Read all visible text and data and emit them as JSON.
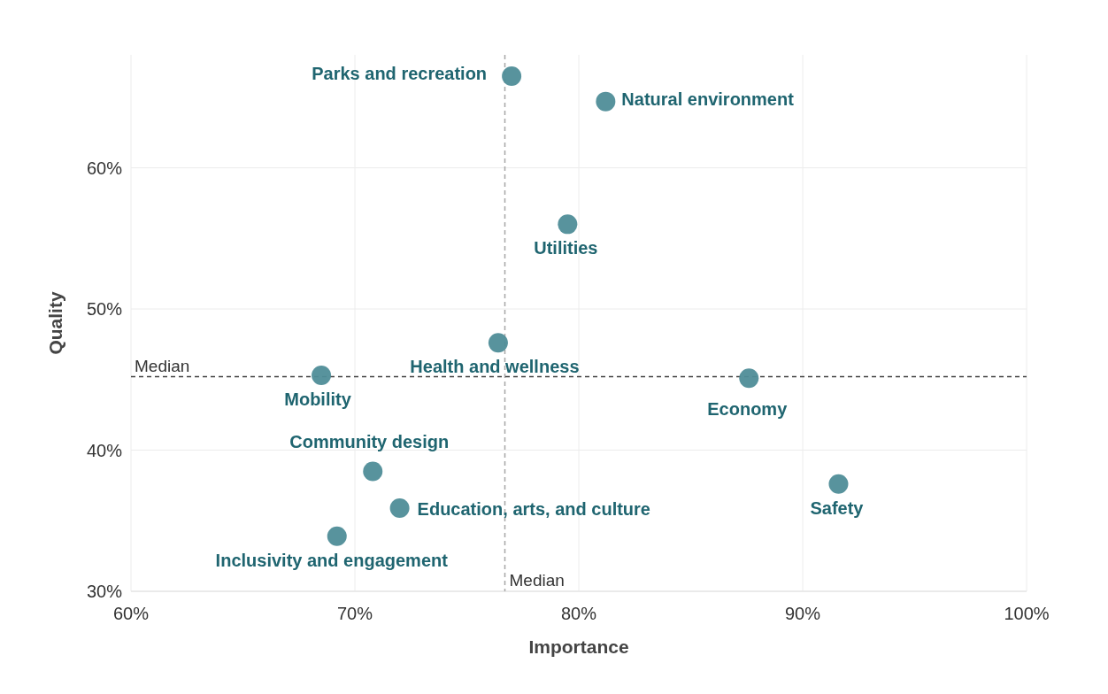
{
  "chart_data": {
    "type": "scatter",
    "xlabel": "Importance",
    "ylabel": "Quality",
    "series": [
      {
        "name": "Parks and recreation",
        "color": "#4f8d98",
        "x": [
          77.0
        ],
        "values": [
          66.5
        ]
      },
      {
        "name": "Natural environment",
        "color": "#4f8d98",
        "x": [
          81.2
        ],
        "values": [
          64.7
        ]
      },
      {
        "name": "Utilities",
        "color": "#4f8d98",
        "x": [
          79.5
        ],
        "values": [
          56.0
        ]
      },
      {
        "name": "Health and wellness",
        "color": "#4f8d98",
        "x": [
          76.4
        ],
        "values": [
          47.6
        ]
      },
      {
        "name": "Mobility",
        "color": "#4f8d98",
        "x": [
          68.5
        ],
        "values": [
          45.3
        ]
      },
      {
        "name": "Economy",
        "color": "#4f8d98",
        "x": [
          87.6
        ],
        "values": [
          45.1
        ]
      },
      {
        "name": "Community design",
        "color": "#4f8d98",
        "x": [
          70.8
        ],
        "values": [
          38.5
        ]
      },
      {
        "name": "Education, arts, and culture",
        "color": "#4f8d98",
        "x": [
          72.0
        ],
        "values": [
          35.9
        ]
      },
      {
        "name": "Inclusivity and engagement",
        "color": "#4f8d98",
        "x": [
          69.2
        ],
        "values": [
          33.9
        ]
      },
      {
        "name": "Safety",
        "color": "#4f8d98",
        "x": [
          91.6
        ],
        "values": [
          37.6
        ]
      }
    ],
    "xlim": [
      60,
      100
    ],
    "xticks": [
      {
        "value": 60,
        "label": "60%"
      },
      {
        "value": 70,
        "label": "70%"
      },
      {
        "value": 80,
        "label": "80%"
      },
      {
        "value": 90,
        "label": "90%"
      },
      {
        "value": 100,
        "label": "100%"
      }
    ],
    "ylim": [
      30,
      68
    ],
    "yticks": [
      {
        "value": 30,
        "label": "30%"
      },
      {
        "value": 40,
        "label": "40%"
      },
      {
        "value": 50,
        "label": "50%"
      },
      {
        "value": 60,
        "label": "60%"
      }
    ],
    "ref_lines": [
      {
        "axis": "x",
        "value": 76.7,
        "label": "Median",
        "color": "#a6a6a6",
        "line_style": "dashed"
      },
      {
        "axis": "y",
        "value": 45.2,
        "label": "Median",
        "color": "#404040",
        "line_style": "dashed"
      }
    ],
    "grid": true,
    "marker": "circle"
  }
}
